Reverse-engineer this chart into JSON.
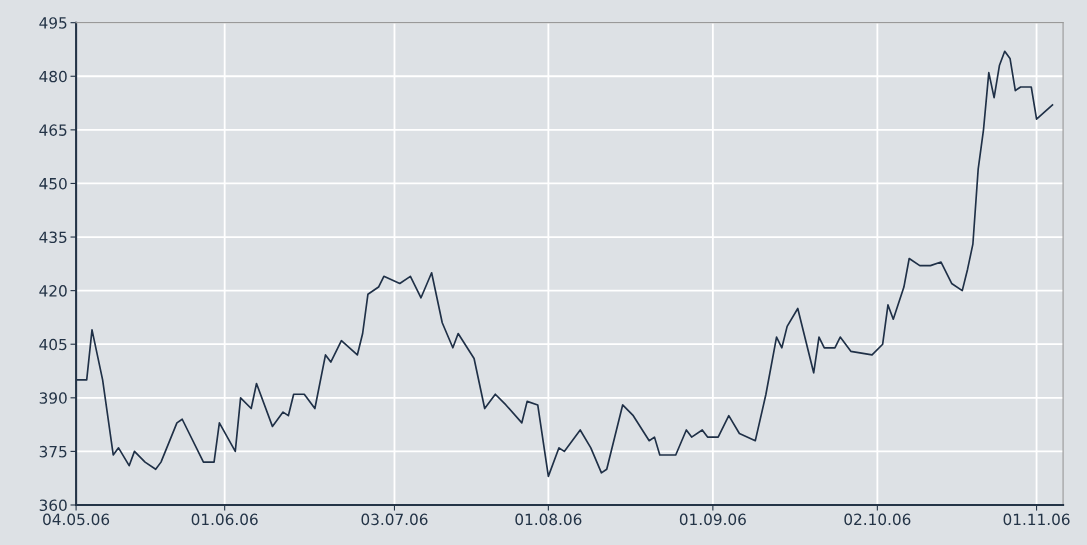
{
  "chart_data": {
    "type": "line",
    "x": [
      "2006-05-04",
      "2006-05-06",
      "2006-05-07",
      "2006-05-09",
      "2006-05-11",
      "2006-05-12",
      "2006-05-14",
      "2006-05-15",
      "2006-05-17",
      "2006-05-19",
      "2006-05-20",
      "2006-05-23",
      "2006-05-24",
      "2006-05-28",
      "2006-05-30",
      "2006-05-31",
      "2006-06-03",
      "2006-06-04",
      "2006-06-06",
      "2006-06-07",
      "2006-06-10",
      "2006-06-12",
      "2006-06-13",
      "2006-06-14",
      "2006-06-16",
      "2006-06-18",
      "2006-06-20",
      "2006-06-21",
      "2006-06-23",
      "2006-06-26",
      "2006-06-27",
      "2006-06-28",
      "2006-06-30",
      "2006-07-01",
      "2006-07-04",
      "2006-07-06",
      "2006-07-08",
      "2006-07-10",
      "2006-07-12",
      "2006-07-14",
      "2006-07-15",
      "2006-07-18",
      "2006-07-20",
      "2006-07-22",
      "2006-07-24",
      "2006-07-27",
      "2006-07-28",
      "2006-07-30",
      "2006-08-01",
      "2006-08-03",
      "2006-08-04",
      "2006-08-07",
      "2006-08-09",
      "2006-08-11",
      "2006-08-12",
      "2006-08-15",
      "2006-08-17",
      "2006-08-20",
      "2006-08-21",
      "2006-08-22",
      "2006-08-25",
      "2006-08-27",
      "2006-08-28",
      "2006-08-30",
      "2006-08-31",
      "2006-09-02",
      "2006-09-04",
      "2006-09-06",
      "2006-09-09",
      "2006-09-11",
      "2006-09-13",
      "2006-09-14",
      "2006-09-15",
      "2006-09-17",
      "2006-09-20",
      "2006-09-21",
      "2006-09-22",
      "2006-09-24",
      "2006-09-25",
      "2006-09-27",
      "2006-10-01",
      "2006-10-03",
      "2006-10-04",
      "2006-10-05",
      "2006-10-07",
      "2006-10-08",
      "2006-10-10",
      "2006-10-12",
      "2006-10-14",
      "2006-10-16",
      "2006-10-18",
      "2006-10-19",
      "2006-10-20",
      "2006-10-21",
      "2006-10-22",
      "2006-10-23",
      "2006-10-24",
      "2006-10-25",
      "2006-10-26",
      "2006-10-27",
      "2006-10-28",
      "2006-10-29",
      "2006-10-31",
      "2006-11-01",
      "2006-11-04"
    ],
    "series": [
      {
        "color": "#1f3047",
        "values": [
          395,
          395,
          409,
          395,
          374,
          376,
          371,
          375,
          372,
          370,
          372,
          383,
          384,
          372,
          372,
          383,
          375,
          390,
          387,
          394,
          382,
          386,
          385,
          391,
          391,
          387,
          402,
          400,
          406,
          402,
          408,
          419,
          421,
          424,
          422,
          424,
          418,
          425,
          411,
          404,
          408,
          401,
          387,
          391,
          388,
          383,
          389,
          388,
          368,
          376,
          375,
          381,
          376,
          369,
          370,
          388,
          385,
          378,
          379,
          374,
          374,
          381,
          379,
          381,
          379,
          379,
          385,
          380,
          378,
          391,
          407,
          404,
          410,
          415,
          397,
          407,
          404,
          404,
          407,
          403,
          402,
          405,
          416,
          412,
          421,
          429,
          427,
          427,
          428,
          422,
          420,
          426,
          433,
          454,
          465,
          481,
          474,
          483,
          487,
          485,
          476,
          477,
          477,
          468,
          472
        ]
      }
    ],
    "xlim": [
      "2006-05-04",
      "2006-11-06"
    ],
    "xticks": [
      {
        "value": "2006-05-04",
        "label": "04.05.06"
      },
      {
        "value": "2006-06-01",
        "label": "01.06.06"
      },
      {
        "value": "2006-07-03",
        "label": "03.07.06"
      },
      {
        "value": "2006-08-01",
        "label": "01.08.06"
      },
      {
        "value": "2006-09-01",
        "label": "01.09.06"
      },
      {
        "value": "2006-10-02",
        "label": "02.10.06"
      },
      {
        "value": "2006-11-01",
        "label": "01.11.06"
      }
    ],
    "ylim": [
      360,
      495
    ],
    "yticks": [
      360,
      375,
      390,
      405,
      420,
      435,
      450,
      465,
      480,
      495
    ],
    "grid": true,
    "marker": "none",
    "line_style": "solid"
  }
}
